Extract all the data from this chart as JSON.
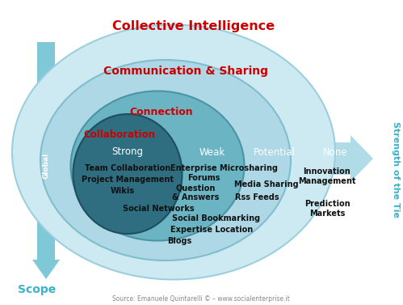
{
  "title": "Collective Intelligence",
  "subtitle2": "Communication & Sharing",
  "subtitle3": "Connection",
  "subtitle4": "Collaboration",
  "header_strong": "Strong",
  "header_weak": "Weak",
  "header_potential": "Potential",
  "header_none": "None",
  "arrow_right_label": "Strength of the Tie",
  "arrow_down_label": "Scope",
  "arrow_down_sub": "Global",
  "source_text": "Source: Emanuele Quintarelli © – www.socialenterprise.it",
  "strong_items": [
    "Team Collaboration",
    "Project Management",
    "Wikis",
    "Social Networks"
  ],
  "weak_items": [
    "Enterprise Microsharing",
    "Forums",
    "Question\n& Answers",
    "Social Bookmarking",
    "Expertise Location",
    "Blogs"
  ],
  "potential_items": [
    "Media Sharing",
    "Rss Feeds"
  ],
  "none_items": [
    "Innovation\nManagement",
    "Prediction\nMarkets"
  ],
  "color_outer_ellipse": "#cdeaf2",
  "color_outer_edge": "#9ccfde",
  "color_mid_ellipse": "#aed8e6",
  "color_mid_edge": "#80bece",
  "color_inner_ellipse": "#6ab4c4",
  "color_inner_edge": "#4a94a4",
  "color_dark_circle": "#2e6e80",
  "color_dark_edge": "#1e4e60",
  "color_arrow_h": "#b0dce8",
  "color_arrow_v": "#7ec8d8",
  "color_title": "#cc0000",
  "color_subtitle": "#cc0000",
  "color_teal_label": "#3ab4c8",
  "color_labels_dark": "#111111",
  "color_labels_white": "#ffffff",
  "color_header": "#555555",
  "bg_color": "#ffffff",
  "source_color": "#888888"
}
